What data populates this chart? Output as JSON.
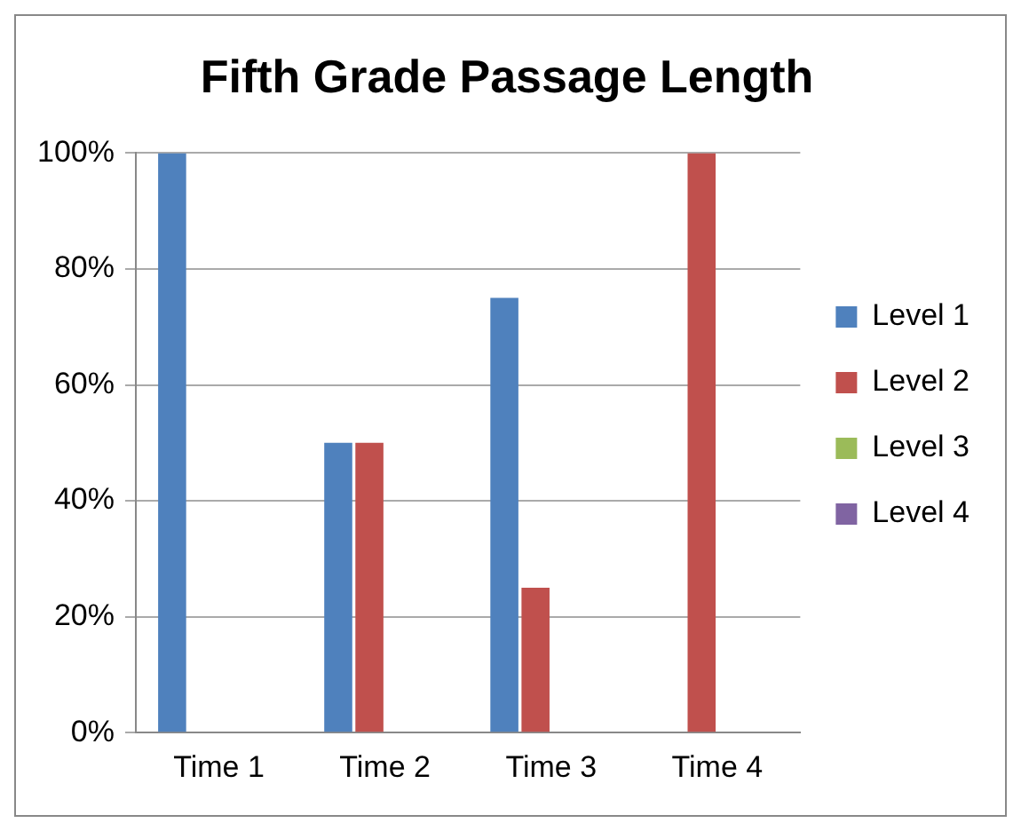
{
  "chart_data": {
    "type": "bar",
    "title": "Fifth Grade Passage Length",
    "categories": [
      "Time 1",
      "Time 2",
      "Time 3",
      "Time 4"
    ],
    "series": [
      {
        "name": "Level 1",
        "color": "#4f81bd",
        "values": [
          100,
          50,
          75,
          0
        ]
      },
      {
        "name": "Level 2",
        "color": "#c0504d",
        "values": [
          0,
          50,
          25,
          100
        ]
      },
      {
        "name": "Level 3",
        "color": "#9bbb59",
        "values": [
          0,
          0,
          0,
          0
        ]
      },
      {
        "name": "Level 4",
        "color": "#8064a2",
        "values": [
          0,
          0,
          0,
          0
        ]
      }
    ],
    "ylim": [
      0,
      100
    ],
    "yticks": [
      {
        "value": 0,
        "label": "0%"
      },
      {
        "value": 20,
        "label": "20%"
      },
      {
        "value": 40,
        "label": "40%"
      },
      {
        "value": 60,
        "label": "60%"
      },
      {
        "value": 80,
        "label": "80%"
      },
      {
        "value": 100,
        "label": "100%"
      }
    ],
    "grid": "y",
    "legend": "right"
  }
}
